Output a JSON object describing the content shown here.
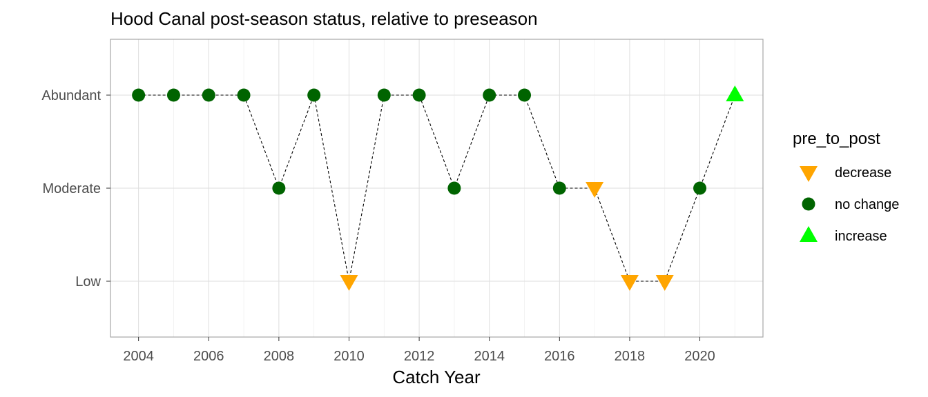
{
  "chart_data": {
    "type": "scatter",
    "title": "Hood Canal post-season status, relative to preseason",
    "xlabel": "Catch Year",
    "ylabel": "",
    "xlim": [
      2003.2,
      2021.8
    ],
    "x_ticks": [
      "2004",
      "2006",
      "2008",
      "2010",
      "2012",
      "2014",
      "2016",
      "2018",
      "2020"
    ],
    "y_categories": [
      "Low",
      "Moderate",
      "Abundant"
    ],
    "legend": {
      "title": "pre_to_post",
      "placement": "right",
      "entries": [
        {
          "label": "decrease",
          "shape": "triangle-down",
          "color": "#FFA500"
        },
        {
          "label": "no change",
          "shape": "circle",
          "color": "#006400"
        },
        {
          "label": "increase",
          "shape": "triangle-up",
          "color": "#00FF00"
        }
      ]
    },
    "grid": true,
    "line_style": "dashed",
    "points": [
      {
        "x": 2004,
        "y": "Abundant",
        "change": "no change"
      },
      {
        "x": 2005,
        "y": "Abundant",
        "change": "no change"
      },
      {
        "x": 2006,
        "y": "Abundant",
        "change": "no change"
      },
      {
        "x": 2007,
        "y": "Abundant",
        "change": "no change"
      },
      {
        "x": 2008,
        "y": "Moderate",
        "change": "no change"
      },
      {
        "x": 2009,
        "y": "Abundant",
        "change": "no change"
      },
      {
        "x": 2010,
        "y": "Low",
        "change": "decrease"
      },
      {
        "x": 2011,
        "y": "Abundant",
        "change": "no change"
      },
      {
        "x": 2012,
        "y": "Abundant",
        "change": "no change"
      },
      {
        "x": 2013,
        "y": "Moderate",
        "change": "no change"
      },
      {
        "x": 2014,
        "y": "Abundant",
        "change": "no change"
      },
      {
        "x": 2015,
        "y": "Abundant",
        "change": "no change"
      },
      {
        "x": 2016,
        "y": "Moderate",
        "change": "no change"
      },
      {
        "x": 2017,
        "y": "Moderate",
        "change": "decrease"
      },
      {
        "x": 2018,
        "y": "Low",
        "change": "decrease"
      },
      {
        "x": 2019,
        "y": "Low",
        "change": "decrease"
      },
      {
        "x": 2020,
        "y": "Moderate",
        "change": "no change"
      },
      {
        "x": 2021,
        "y": "Abundant",
        "change": "increase"
      }
    ]
  }
}
